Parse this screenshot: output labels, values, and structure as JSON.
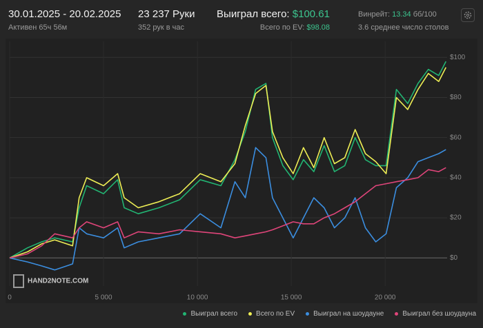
{
  "header": {
    "date_range": "30.01.2025 - 20.02.2025",
    "active": "Активен 65ч 56м",
    "hands": "23 237 Руки",
    "hands_per_hour": "352 рук в час",
    "won_label": "Выиграл всего:",
    "won_value": "$100.61",
    "ev_label": "Всего по EV:",
    "ev_value": "$98.08",
    "winrate_label": "Винрейт:",
    "winrate_value": "13.34",
    "winrate_unit": "бб/100",
    "avg_tables": "3.6 среднее число столов",
    "watermark": "HAND2NOTE.COM"
  },
  "chart_data": {
    "type": "line",
    "x": [
      0,
      950,
      1700,
      2400,
      3350,
      3700,
      4100,
      5000,
      5750,
      6100,
      6850,
      7950,
      9050,
      10150,
      11250,
      12000,
      12550,
      13100,
      13650,
      14000,
      14550,
      15100,
      15650,
      16200,
      16750,
      17300,
      17850,
      18400,
      18950,
      19500,
      20050,
      20600,
      21200,
      21750,
      22300,
      22850,
      23237
    ],
    "series": [
      {
        "name": "Выиграл всего",
        "color": "#22b573",
        "values": [
          0,
          5,
          8,
          10,
          8,
          25,
          36,
          32,
          39,
          25,
          22,
          25,
          29,
          39,
          36,
          49,
          63,
          84,
          87,
          60,
          46,
          39,
          49,
          43,
          56,
          43,
          46,
          60,
          49,
          46,
          46,
          84,
          77,
          87,
          94,
          91,
          98
        ]
      },
      {
        "name": "Всего по EV",
        "color": "#eeee55",
        "values": [
          0,
          3,
          7,
          9,
          6,
          30,
          40,
          36,
          42,
          30,
          25,
          28,
          32,
          42,
          38,
          47,
          66,
          82,
          86,
          63,
          50,
          42,
          55,
          45,
          60,
          47,
          50,
          64,
          52,
          48,
          42,
          80,
          74,
          84,
          92,
          88,
          95
        ]
      },
      {
        "name": "Выиграл на шоудауне",
        "color": "#3b8ee0",
        "values": [
          0,
          -2,
          -4,
          -6,
          -3,
          15,
          12,
          10,
          15,
          5,
          8,
          10,
          12,
          22,
          15,
          38,
          30,
          55,
          50,
          30,
          20,
          10,
          20,
          30,
          25,
          15,
          20,
          30,
          15,
          8,
          12,
          35,
          40,
          48,
          50,
          52,
          54
        ]
      },
      {
        "name": "Выиграл без шоудауна",
        "color": "#e0457a",
        "values": [
          0,
          2,
          6,
          12,
          10,
          15,
          18,
          15,
          18,
          10,
          13,
          12,
          14,
          13,
          12,
          10,
          11,
          12,
          13,
          14,
          16,
          18,
          17,
          17,
          20,
          22,
          25,
          28,
          32,
          36,
          37,
          38,
          39,
          40,
          44,
          43,
          45
        ]
      }
    ],
    "xlim": [
      0,
      23300
    ],
    "ylim": [
      -14,
      108
    ],
    "xticks": [
      {
        "value": 0,
        "label": "0"
      },
      {
        "value": 5000,
        "label": "5 000"
      },
      {
        "value": 10000,
        "label": "10 000"
      },
      {
        "value": 15000,
        "label": "15 000"
      },
      {
        "value": 20000,
        "label": "20 000"
      }
    ],
    "yticks": [
      {
        "value": 0,
        "label": "$0"
      },
      {
        "value": 20,
        "label": "$20"
      },
      {
        "value": 40,
        "label": "$40"
      },
      {
        "value": 60,
        "label": "$60"
      },
      {
        "value": 80,
        "label": "$80"
      },
      {
        "value": 100,
        "label": "$100"
      }
    ],
    "grid": true,
    "legend": "bottom-right"
  }
}
